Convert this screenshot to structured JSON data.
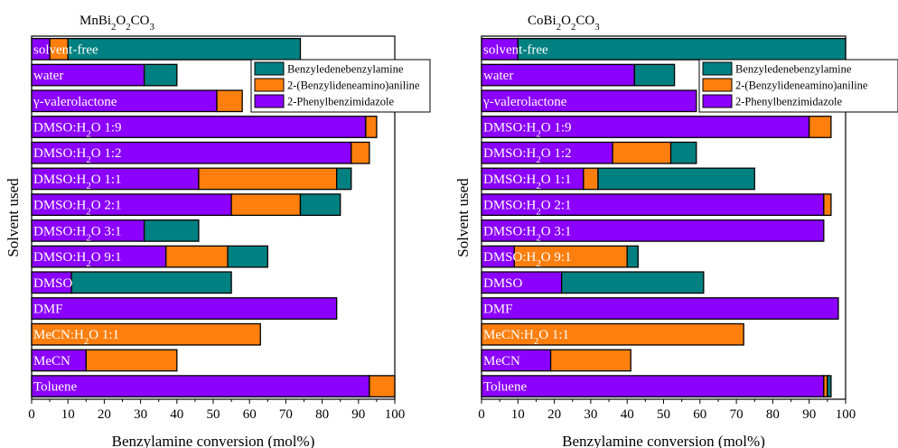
{
  "chart_data": [
    {
      "type": "bar",
      "stacked": true,
      "orientation": "horizontal",
      "title": "MnBi2O2CO3",
      "title_parts": [
        [
          "MnBi",
          false
        ],
        [
          "2",
          true
        ],
        [
          "O",
          false
        ],
        [
          "2",
          true
        ],
        [
          "CO",
          false
        ],
        [
          "3",
          true
        ]
      ],
      "xlabel": "Benzylamine conversion (mol%)",
      "ylabel": "Solvent used",
      "xlim": [
        0,
        100
      ],
      "xticks": [
        0,
        10,
        20,
        30,
        40,
        50,
        60,
        70,
        80,
        90,
        100
      ],
      "categories": [
        "solvent-free",
        "water",
        "γ-valerolactone",
        "DMSO:H2O  1:9",
        "DMSO:H2O  1:2",
        "DMSO:H2O  1:1",
        "DMSO:H2O  2:1",
        "DMSO:H2O  3:1",
        "DMSO:H2O  9:1",
        "DMSO",
        "DMF",
        "MeCN:H2O 1:1",
        "MeCN",
        "Toluene"
      ],
      "category_parts": [
        [
          [
            "solvent-free",
            false
          ]
        ],
        [
          [
            "water",
            false
          ]
        ],
        [
          [
            "γ-valerolactone",
            false
          ]
        ],
        [
          [
            "DMSO:H",
            false
          ],
          [
            "2",
            true
          ],
          [
            "O  1:9",
            false
          ]
        ],
        [
          [
            "DMSO:H",
            false
          ],
          [
            "2",
            true
          ],
          [
            "O  1:2",
            false
          ]
        ],
        [
          [
            "DMSO:H",
            false
          ],
          [
            "2",
            true
          ],
          [
            "O  1:1",
            false
          ]
        ],
        [
          [
            "DMSO:H",
            false
          ],
          [
            "2",
            true
          ],
          [
            "O  2:1",
            false
          ]
        ],
        [
          [
            "DMSO:H",
            false
          ],
          [
            "2",
            true
          ],
          [
            "O  3:1",
            false
          ]
        ],
        [
          [
            "DMSO:H",
            false
          ],
          [
            "2",
            true
          ],
          [
            "O  9:1",
            false
          ]
        ],
        [
          [
            "DMSO",
            false
          ]
        ],
        [
          [
            "DMF",
            false
          ]
        ],
        [
          [
            "MeCN:H",
            false
          ],
          [
            "2",
            true
          ],
          [
            "O 1:1",
            false
          ]
        ],
        [
          [
            "MeCN",
            false
          ]
        ],
        [
          [
            "Toluene",
            false
          ]
        ]
      ],
      "series": [
        {
          "name": "2-Phenylbenzimidazole",
          "color": "#8b00ff",
          "values": [
            5,
            31,
            51,
            92,
            88,
            46,
            55,
            31,
            37,
            11,
            84,
            0,
            15,
            93
          ]
        },
        {
          "name": "2-(Benzylideneamino)aniline",
          "color": "#ff7f0e",
          "values": [
            5,
            0,
            7,
            3,
            5,
            38,
            19,
            0,
            17,
            0,
            0,
            63,
            25,
            7
          ]
        },
        {
          "name": "Benzyledenebenzylamine",
          "color": "#008080",
          "values": [
            64,
            9,
            0,
            0,
            0,
            4,
            11,
            15,
            11,
            44,
            0,
            0,
            0,
            0
          ]
        }
      ],
      "legend": {
        "placement": "top-right",
        "order": [
          2,
          1,
          0
        ],
        "labels": [
          [
            [
              "Benzyledenebenzylamine",
              false
            ]
          ],
          [
            [
              "2-(Benzylideneamino)aniline",
              false
            ]
          ],
          [
            [
              "2-Phenylbenzimidazole",
              false
            ]
          ]
        ]
      }
    },
    {
      "type": "bar",
      "stacked": true,
      "orientation": "horizontal",
      "title": "CoBi2O2CO3",
      "title_parts": [
        [
          "CoBi",
          false
        ],
        [
          "2",
          true
        ],
        [
          "O",
          false
        ],
        [
          "2",
          true
        ],
        [
          "CO",
          false
        ],
        [
          "3",
          true
        ]
      ],
      "xlabel": "Benzylamine conversion (mol%)",
      "ylabel": "Solvent used",
      "xlim": [
        0,
        100
      ],
      "xticks": [
        0,
        10,
        20,
        30,
        40,
        50,
        60,
        70,
        80,
        90,
        100
      ],
      "categories": [
        "solvent-free",
        "water",
        "γ-valerolactone",
        "DMSO:H2O  1:9",
        "DMSO:H2O  1:2",
        "DMSO:H2O  1:1",
        "DMSO:H2O  2:1",
        "DMSO:H2O  3:1",
        "DMSO:H2O  9:1",
        "DMSO",
        "DMF",
        "MeCN:H2O 1:1",
        "MeCN",
        "Toluene"
      ],
      "category_parts": [
        [
          [
            "solvent-free",
            false
          ]
        ],
        [
          [
            "water",
            false
          ]
        ],
        [
          [
            "γ-valerolactone",
            false
          ]
        ],
        [
          [
            "DMSO:H",
            false
          ],
          [
            "2",
            true
          ],
          [
            "O  1:9",
            false
          ]
        ],
        [
          [
            "DMSO:H",
            false
          ],
          [
            "2",
            true
          ],
          [
            "O  1:2",
            false
          ]
        ],
        [
          [
            "DMSO:H",
            false
          ],
          [
            "2",
            true
          ],
          [
            "O  1:1",
            false
          ]
        ],
        [
          [
            "DMSO:H",
            false
          ],
          [
            "2",
            true
          ],
          [
            "O  2:1",
            false
          ]
        ],
        [
          [
            "DMSO:H",
            false
          ],
          [
            "2",
            true
          ],
          [
            "O  3:1",
            false
          ]
        ],
        [
          [
            "DMSO:H",
            false
          ],
          [
            "2",
            true
          ],
          [
            "O  9:1",
            false
          ]
        ],
        [
          [
            "DMSO",
            false
          ]
        ],
        [
          [
            "DMF",
            false
          ]
        ],
        [
          [
            "MeCN:H",
            false
          ],
          [
            "2",
            true
          ],
          [
            "O 1:1",
            false
          ]
        ],
        [
          [
            "MeCN",
            false
          ]
        ],
        [
          [
            "Toluene",
            false
          ]
        ]
      ],
      "series": [
        {
          "name": "2-Phenylbenzimidazole",
          "color": "#8b00ff",
          "values": [
            10,
            42,
            59,
            90,
            36,
            28,
            94,
            94,
            9,
            22,
            98,
            0,
            19,
            94
          ]
        },
        {
          "name": "2-(Benzylideneamino)aniline",
          "color": "#ff7f0e",
          "values": [
            0,
            0,
            0,
            6,
            16,
            4,
            2,
            0,
            31,
            0,
            0,
            72,
            22,
            1
          ]
        },
        {
          "name": "Benzyledenebenzylamine",
          "color": "#008080",
          "values": [
            90,
            11,
            0,
            0,
            7,
            43,
            0,
            0,
            3,
            39,
            0,
            0,
            0,
            1
          ]
        }
      ],
      "legend": {
        "placement": "top-right",
        "order": [
          2,
          1,
          0
        ],
        "labels": [
          [
            [
              "Benzyledenebenzylamine",
              false
            ]
          ],
          [
            [
              "2-(Benzylideneamino)aniline",
              false
            ]
          ],
          [
            [
              "2-Phenylbenzimidazole",
              false
            ]
          ]
        ]
      }
    }
  ]
}
